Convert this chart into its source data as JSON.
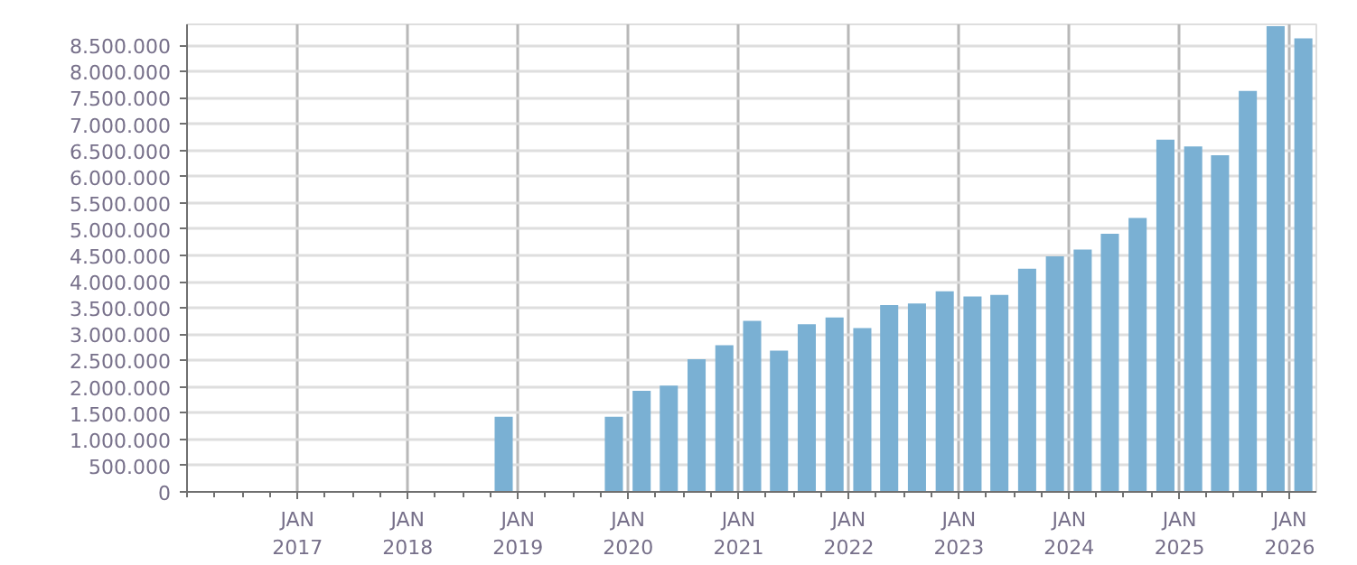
{
  "chart_data": {
    "type": "bar",
    "x": [
      "2018-11-15",
      "2019-02-15",
      "2019-05-15",
      "2019-08-15",
      "2019-11-15",
      "2020-02-15",
      "2020-05-15",
      "2020-08-15",
      "2020-11-15",
      "2021-02-15",
      "2021-05-15",
      "2021-08-15",
      "2021-11-15",
      "2022-02-15",
      "2022-05-15",
      "2022-08-15",
      "2022-11-15",
      "2023-02-15",
      "2023-05-15",
      "2023-08-15",
      "2023-11-15",
      "2024-02-15",
      "2024-05-15",
      "2024-08-15",
      "2024-11-15",
      "2025-02-15",
      "2025-05-15",
      "2025-08-15",
      "2025-11-15",
      "2026-02-15"
    ],
    "values": [
      1430000,
      null,
      null,
      null,
      1430000,
      1925000,
      2025000,
      2525000,
      2790000,
      3255000,
      2690000,
      3190000,
      3320000,
      3120000,
      3555000,
      3585000,
      3820000,
      3720000,
      3750000,
      4250000,
      4485000,
      4615000,
      4915000,
      5215000,
      6705000,
      6575000,
      6410000,
      7635000,
      8865000,
      8635000
    ],
    "color": "#7ab0d3",
    "xlim": [
      "2016-01-01",
      "2026-03-30"
    ],
    "xticks": [
      {
        "value": "2017-01-01",
        "label": "JAN\n2017"
      },
      {
        "value": "2018-01-01",
        "label": "JAN\n2018"
      },
      {
        "value": "2019-01-01",
        "label": "JAN\n2019"
      },
      {
        "value": "2020-01-01",
        "label": "JAN\n2020"
      },
      {
        "value": "2021-01-01",
        "label": "JAN\n2021"
      },
      {
        "value": "2022-01-01",
        "label": "JAN\n2022"
      },
      {
        "value": "2023-01-01",
        "label": "JAN\n2023"
      },
      {
        "value": "2024-01-01",
        "label": "JAN\n2024"
      },
      {
        "value": "2025-01-01",
        "label": "JAN\n2025"
      },
      {
        "value": "2026-01-01",
        "label": "JAN\n2026"
      }
    ],
    "ylim": [
      0,
      8900000
    ],
    "yticks": [
      0,
      {
        "value": 500000,
        "label": "500.000"
      },
      {
        "value": 1000000,
        "label": "1.000.000"
      },
      {
        "value": 1500000,
        "label": "1.500.000"
      },
      {
        "value": 2000000,
        "label": "2.000.000"
      },
      {
        "value": 2500000,
        "label": "2.500.000"
      },
      {
        "value": 3000000,
        "label": "3.000.000"
      },
      {
        "value": 3500000,
        "label": "3.500.000"
      },
      {
        "value": 4000000,
        "label": "4.000.000"
      },
      {
        "value": 4500000,
        "label": "4.500.000"
      },
      {
        "value": 5000000,
        "label": "5.000.000"
      },
      {
        "value": 5500000,
        "label": "5.500.000"
      },
      {
        "value": 6000000,
        "label": "6.000.000"
      },
      {
        "value": 6500000,
        "label": "6.500.000"
      },
      {
        "value": 7000000,
        "label": "7.000.000"
      },
      {
        "value": 7500000,
        "label": "7.500.000"
      },
      {
        "value": 8000000,
        "label": "8.000.000"
      },
      {
        "value": 8500000,
        "label": "8.500.000"
      }
    ],
    "grid": true
  }
}
